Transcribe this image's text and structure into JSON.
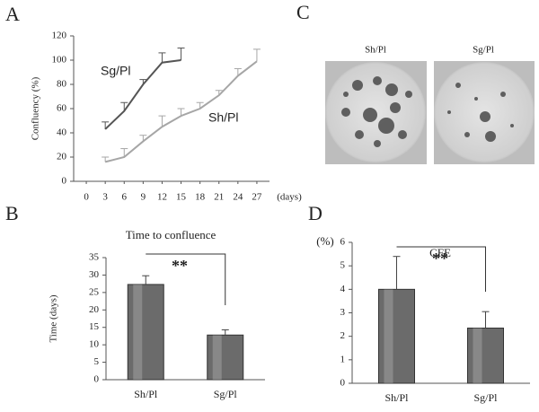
{
  "chart_data": [
    {
      "type": "line",
      "panel": "A",
      "y_label": "Confluency (%)",
      "x_label": "(days)",
      "xlim": [
        -2,
        29
      ],
      "xticks": [
        0,
        3,
        6,
        9,
        12,
        15,
        18,
        21,
        24,
        27
      ],
      "ylim": [
        0,
        120
      ],
      "yticks": [
        0,
        20,
        40,
        60,
        80,
        100,
        120
      ],
      "series": [
        {
          "name": "Sg/Pl",
          "color": "#555555",
          "x": [
            3,
            6,
            9,
            12,
            15
          ],
          "values": [
            43,
            58,
            80,
            98,
            100
          ],
          "errors": [
            6,
            7,
            4,
            8,
            10
          ]
        },
        {
          "name": "Sh/Pl",
          "color": "#a6a6a6",
          "x": [
            3,
            6,
            9,
            12,
            15,
            18,
            21,
            24,
            27
          ],
          "values": [
            16,
            20,
            33,
            45,
            54,
            60,
            71,
            87,
            99
          ],
          "errors": [
            4,
            7,
            5,
            9,
            6,
            5,
            4,
            6,
            10
          ]
        }
      ]
    },
    {
      "type": "bar",
      "panel": "B",
      "title": "Time to confluence",
      "y_label": "Time (days)",
      "categories": [
        "Sh/Pl",
        "Sg/Pl"
      ],
      "values": [
        27.3,
        12.8
      ],
      "errors": [
        2.5,
        1.5
      ],
      "color": "#6b6b6b",
      "ylim": [
        0,
        35
      ],
      "yticks": [
        0,
        5,
        10,
        15,
        20,
        25,
        30,
        35
      ],
      "significance": "**"
    },
    {
      "type": "bar",
      "panel": "D",
      "title": "CFE",
      "y_label": "(%)",
      "categories": [
        "Sh/Pl",
        "Sg/Pl"
      ],
      "values": [
        4.0,
        2.35
      ],
      "errors": [
        1.4,
        0.7
      ],
      "color": "#6b6b6b",
      "ylim": [
        0,
        6
      ],
      "yticks": [
        0,
        1,
        2,
        3,
        4,
        5,
        6
      ],
      "significance": "**"
    }
  ],
  "panel_c": {
    "panel": "C",
    "images": [
      "Sh/Pl",
      "Sg/Pl"
    ]
  }
}
